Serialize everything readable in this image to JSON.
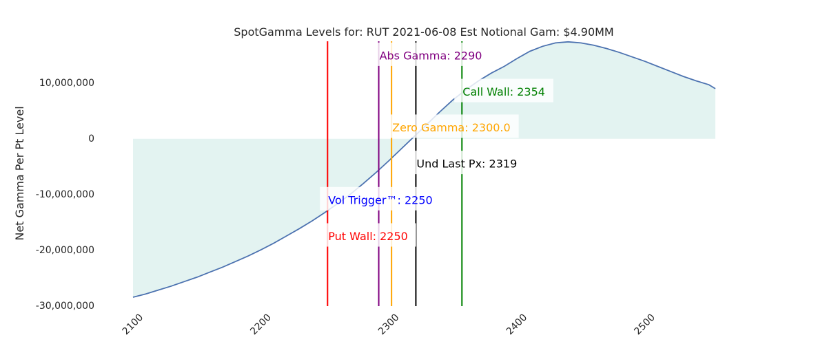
{
  "chart_data": {
    "type": "area",
    "title": "SpotGamma Levels for: RUT  2021-06-08 Est Notional Gam: $4.90MM",
    "xlabel": "",
    "ylabel": "Net Gamma Per Pt Level",
    "xlim": [
      2095,
      2550
    ],
    "ylim": [
      -30000000,
      17500000
    ],
    "x_ticks": [
      2100,
      2200,
      2300,
      2400,
      2500
    ],
    "x_tick_labels": [
      "2100",
      "2200",
      "2300",
      "2400",
      "2500"
    ],
    "y_ticks": [
      10000000,
      0,
      -10000000,
      -20000000,
      -30000000
    ],
    "y_tick_labels": [
      "10,000,000",
      "0",
      "-10,000,000",
      "-20,000,000",
      "-30,000,000"
    ],
    "grid": false,
    "series": [
      {
        "x": [
          2095,
          2105,
          2115,
          2125,
          2135,
          2145,
          2155,
          2165,
          2175,
          2185,
          2195,
          2205,
          2215,
          2225,
          2235,
          2245,
          2255,
          2265,
          2275,
          2285,
          2295,
          2305,
          2315,
          2325,
          2335,
          2345,
          2355,
          2365,
          2375,
          2385,
          2395,
          2405,
          2415,
          2425,
          2435,
          2445,
          2455,
          2465,
          2475,
          2485,
          2495,
          2505,
          2515,
          2525,
          2535,
          2545,
          2550
        ],
        "y": [
          -28400000,
          -27800000,
          -27100000,
          -26400000,
          -25600000,
          -24800000,
          -23900000,
          -23000000,
          -22000000,
          -21000000,
          -19900000,
          -18700000,
          -17400000,
          -16100000,
          -14700000,
          -13200000,
          -11600000,
          -9900000,
          -8000000,
          -6000000,
          -3900000,
          -1700000,
          500000,
          2700000,
          4900000,
          7000000,
          8800000,
          10400000,
          11800000,
          13000000,
          14400000,
          15700000,
          16600000,
          17200000,
          17400000,
          17200000,
          16800000,
          16200000,
          15500000,
          14700000,
          13900000,
          13000000,
          12100000,
          11200000,
          10400000,
          9700000,
          9000000
        ]
      }
    ],
    "colors": {
      "line": "#4c72b0",
      "fill": "#e3f3f1"
    },
    "levels": [
      {
        "name": "Put Wall",
        "label": "Put Wall: 2250",
        "x": 2247,
        "label_y": -17600000,
        "color": "#ff0000",
        "text_color": "#ff0000"
      },
      {
        "name": "Vol Trigger",
        "label": "Vol Trigger™: 2250",
        "x": 2247,
        "label_y": -11100000,
        "color": "#ff0000",
        "text_color": "#0000ff"
      },
      {
        "name": "Abs Gamma",
        "label": "Abs Gamma: 2290",
        "x": 2287,
        "label_y": 14800000,
        "color": "#800080",
        "text_color": "#800080"
      },
      {
        "name": "Zero Gamma",
        "label": "Zero Gamma: 2300.0",
        "x": 2297,
        "label_y": 1900000,
        "color": "#ffa500",
        "text_color": "#ffa500"
      },
      {
        "name": "Und Last Px",
        "label": "Und Last Px: 2319",
        "x": 2316,
        "label_y": -4600000,
        "color": "#000000",
        "text_color": "#000000"
      },
      {
        "name": "Call Wall",
        "label": "Call Wall: 2354",
        "x": 2352,
        "label_y": 8300000,
        "color": "#008000",
        "text_color": "#008000"
      }
    ]
  }
}
